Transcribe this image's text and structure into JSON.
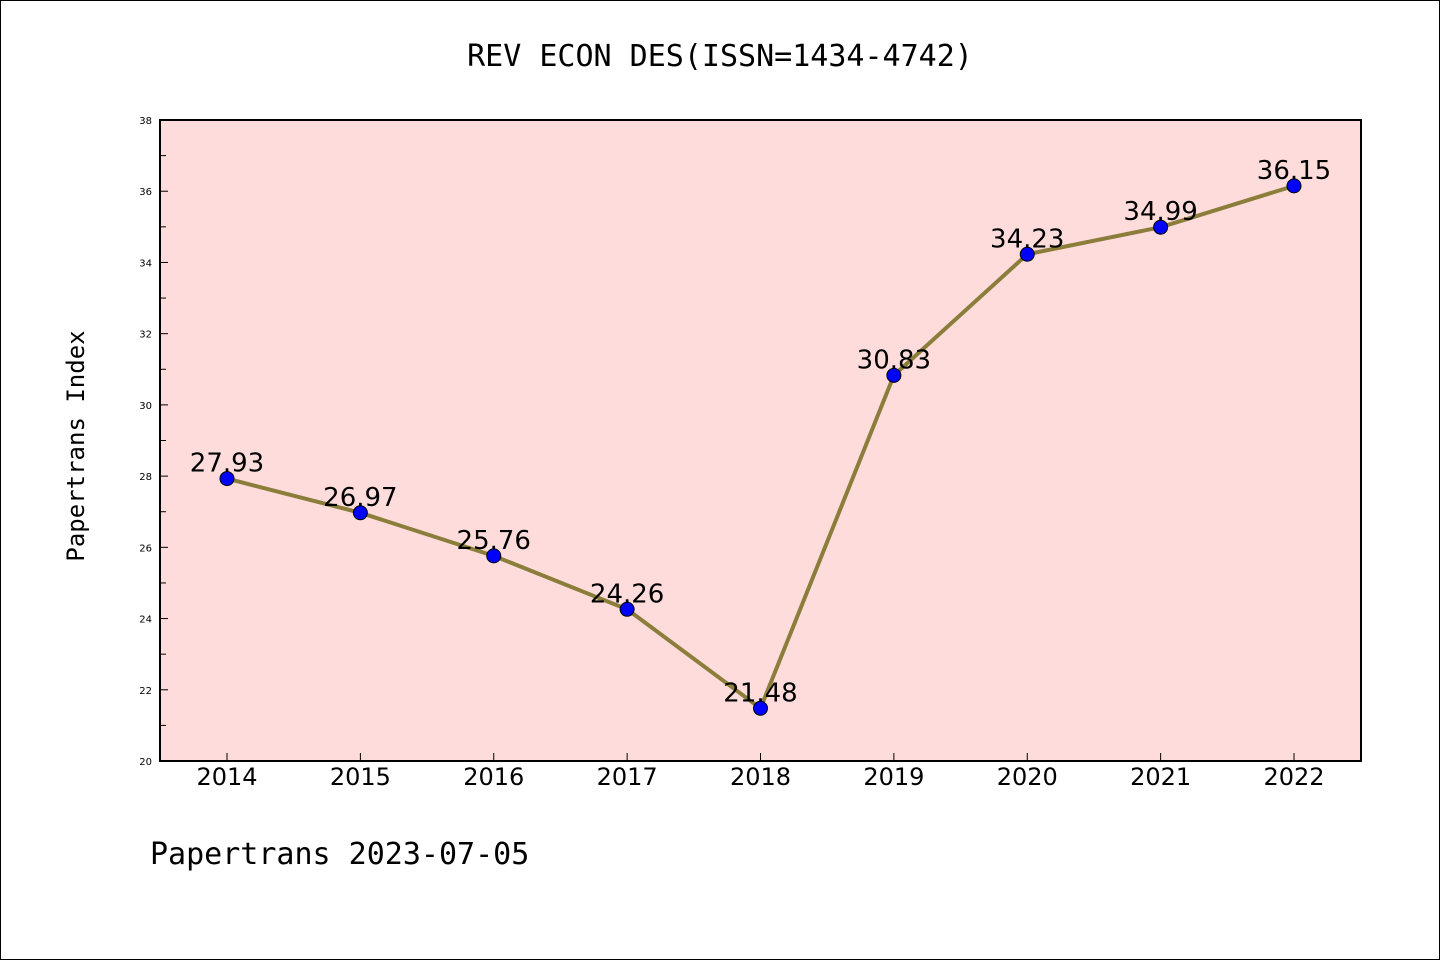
{
  "chart_data": {
    "type": "line",
    "title": "REV ECON DES(ISSN=1434-4742)",
    "ylabel": "Papertrans Index",
    "xlabel": "",
    "footer": "Papertrans 2023-07-05",
    "x": [
      "2014",
      "2015",
      "2016",
      "2017",
      "2018",
      "2019",
      "2020",
      "2021",
      "2022"
    ],
    "values": [
      27.93,
      26.97,
      25.76,
      24.26,
      21.48,
      30.83,
      34.23,
      34.99,
      36.15
    ],
    "data_labels": [
      "27.93",
      "26.97",
      "25.76",
      "24.26",
      "21.48",
      "30.83",
      "34.23",
      "34.99",
      "36.15"
    ],
    "ylim": [
      20,
      38
    ],
    "yticks": [
      20,
      22,
      24,
      26,
      28,
      30,
      32,
      34,
      36,
      38
    ],
    "ytick_labels": [
      "20",
      "22",
      "24",
      "26",
      "28",
      "30",
      "32",
      "34",
      "36",
      "38"
    ],
    "grid": false,
    "colors": {
      "plot_background": "#FFDCDC",
      "line": "#8B7D3A",
      "marker": "#0000FF"
    }
  }
}
